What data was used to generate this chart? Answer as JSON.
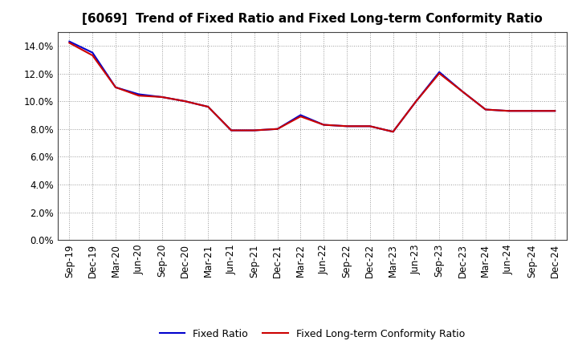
{
  "title": "[6069]  Trend of Fixed Ratio and Fixed Long-term Conformity Ratio",
  "x_labels": [
    "Sep-19",
    "Dec-19",
    "Mar-20",
    "Jun-20",
    "Sep-20",
    "Dec-20",
    "Mar-21",
    "Jun-21",
    "Sep-21",
    "Dec-21",
    "Mar-22",
    "Jun-22",
    "Sep-22",
    "Dec-22",
    "Mar-23",
    "Jun-23",
    "Sep-23",
    "Dec-23",
    "Mar-24",
    "Jun-24",
    "Sep-24",
    "Dec-24"
  ],
  "fixed_ratio": [
    0.143,
    0.135,
    0.11,
    0.105,
    0.103,
    0.1,
    0.096,
    0.079,
    0.079,
    0.08,
    0.09,
    0.083,
    0.082,
    0.082,
    0.078,
    0.1,
    0.121,
    0.107,
    0.094,
    0.093,
    0.093,
    0.093
  ],
  "fixed_lt_ratio": [
    0.142,
    0.133,
    0.11,
    0.104,
    0.103,
    0.1,
    0.096,
    0.079,
    0.079,
    0.08,
    0.089,
    0.083,
    0.082,
    0.082,
    0.078,
    0.1,
    0.12,
    0.107,
    0.094,
    0.093,
    0.093,
    0.093
  ],
  "fixed_ratio_color": "#0000cd",
  "fixed_lt_ratio_color": "#cc0000",
  "ylim": [
    0.0,
    0.15
  ],
  "yticks": [
    0.0,
    0.02,
    0.04,
    0.06,
    0.08,
    0.1,
    0.12,
    0.14
  ],
  "background_color": "#ffffff",
  "plot_bg_color": "#ffffff",
  "grid_color": "#999999",
  "title_fontsize": 11,
  "tick_fontsize": 8.5,
  "legend_fixed_ratio": "Fixed Ratio",
  "legend_fixed_lt_ratio": "Fixed Long-term Conformity Ratio"
}
